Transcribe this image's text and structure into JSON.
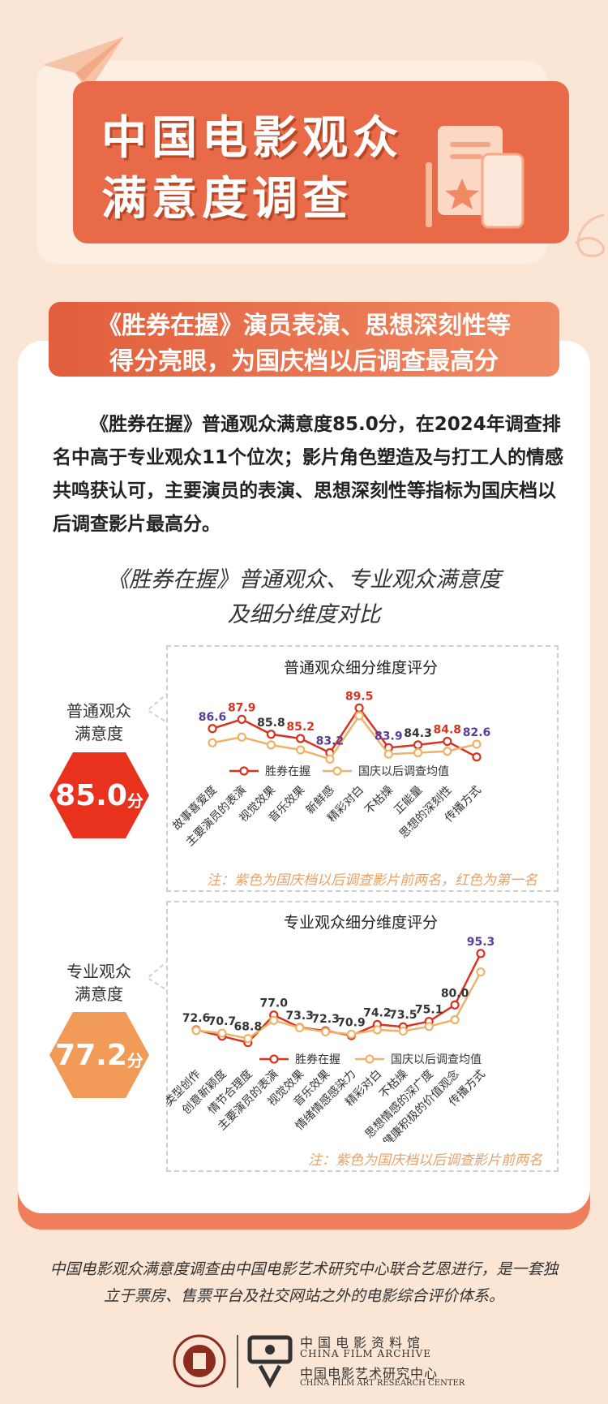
{
  "header": {
    "title_line1": "中国电影观众",
    "title_line2": "满意度调查"
  },
  "banner": {
    "line1": "《胜券在握》演员表演、思想深刻性等",
    "line2": "得分亮眼，为国庆档以后调查最高分"
  },
  "intro": "《胜券在握》普通观众满意度85.0分，在2024年调查排名中高于专业观众11个位次；影片角色塑造及与打工人的情感共鸣获认可，主要演员的表演、思想深刻性等指标为国庆档以后调查影片最高分。",
  "chart_caption": {
    "line1": "《胜券在握》普通观众、专业观众满意度",
    "line2": "及细分维度对比"
  },
  "general_audience": {
    "label_line1": "普通观众",
    "label_line2": "满意度",
    "score": "85.0",
    "unit": "分",
    "badge_color": "#e8321e"
  },
  "professional_audience": {
    "label_line1": "专业观众",
    "label_line2": "满意度",
    "score": "77.2",
    "unit": "分",
    "badge_color": "#f29b58"
  },
  "footer": {
    "line1": "中国电影观众满意度调查由中国电影艺术研究中心联合艺恩进行，是一套独",
    "line2": "立于票房、售票平台及社交网站之外的电影综合评价体系。",
    "logo_cn1": "中国电影资料馆",
    "logo_en1": "CHINA FILM ARCHIVE",
    "logo_cn2": "中国电影艺术研究中心",
    "logo_en2": "CHINA FILM ART RESEARCH CENTER"
  },
  "colors": {
    "series_main": "#d8331f",
    "series_avg": "#f0b269",
    "purple_label": "#5b3c9a",
    "red_label": "#d8331f",
    "gray_label": "#333333"
  },
  "chart_data": [
    {
      "type": "line",
      "title": "普通观众细分维度评分",
      "categories": [
        "故事喜爱度",
        "主要演员的表演",
        "视觉效果",
        "音乐效果",
        "新鲜感",
        "精彩对白",
        "不枯燥",
        "正能量",
        "思想的深刻性",
        "传播方式"
      ],
      "series": [
        {
          "name": "胜券在握",
          "values": [
            86.6,
            87.9,
            85.8,
            85.2,
            83.2,
            89.5,
            83.9,
            84.3,
            84.8,
            82.6
          ]
        },
        {
          "name": "国庆以后调查均值",
          "values": [
            84.6,
            85.4,
            84.3,
            83.6,
            82.3,
            88.4,
            83.0,
            83.2,
            83.4,
            84.4
          ]
        }
      ],
      "label_colors": [
        "purple",
        "red",
        "gray",
        "red",
        "purple",
        "red",
        "purple",
        "gray",
        "red",
        "purple"
      ],
      "note": "注：紫色为国庆档以后调查影片前两名，红色为第一名",
      "legend": "bottom"
    },
    {
      "type": "line",
      "title": "专业观众细分维度评分",
      "categories": [
        "类型创作",
        "创意新颖度",
        "情节合理度",
        "主要演员的表演",
        "视觉效果",
        "音乐效果",
        "情绪情感感染力",
        "精彩对白",
        "不枯燥",
        "思想情感的深广度",
        "健康积极的价值观念",
        "传播方式"
      ],
      "series": [
        {
          "name": "胜券在握",
          "values": [
            72.6,
            70.7,
            68.8,
            77.0,
            73.3,
            72.3,
            70.9,
            74.2,
            73.5,
            75.1,
            80.0,
            95.3
          ]
        },
        {
          "name": "国庆以后调查均值",
          "values": [
            72.4,
            71.6,
            70.0,
            75.4,
            73.2,
            72.0,
            71.3,
            72.6,
            72.2,
            73.6,
            75.6,
            89.8
          ]
        }
      ],
      "label_colors": [
        "gray",
        "gray",
        "gray",
        "gray",
        "gray",
        "gray",
        "gray",
        "gray",
        "gray",
        "gray",
        "gray",
        "purple"
      ],
      "note": "注：紫色为国庆档以后调查影片前两名",
      "legend": "bottom"
    }
  ]
}
